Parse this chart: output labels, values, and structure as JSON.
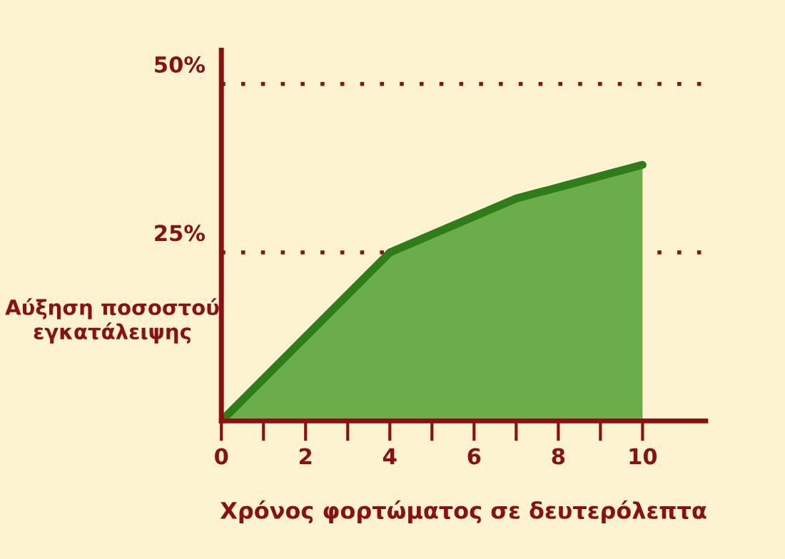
{
  "chart_data": {
    "type": "area",
    "xlabel": "Χρόνος φορτώματος σε δευτερόλεπτα",
    "ylabel": "Αύξηση ποσοστού\nεγκατάλειψης",
    "x": [
      0,
      4,
      7,
      10
    ],
    "series": [
      {
        "color": "#6aad4a",
        "values": [
          0,
          25,
          33,
          38
        ]
      }
    ],
    "xlim": [
      0,
      11.5
    ],
    "xticks": [
      0,
      {
        "value": 1,
        "label": null
      },
      2,
      {
        "value": 3,
        "label": null
      },
      4,
      {
        "value": 5,
        "label": null
      },
      6,
      {
        "value": 7,
        "label": null
      },
      8,
      {
        "value": 9,
        "label": null
      },
      10
    ],
    "ylim": [
      0,
      55
    ],
    "yticks": [
      {
        "value": 25,
        "label": "25%"
      },
      {
        "value": 50,
        "label": "50%"
      }
    ],
    "grid": "y",
    "line_style": "solid"
  }
}
